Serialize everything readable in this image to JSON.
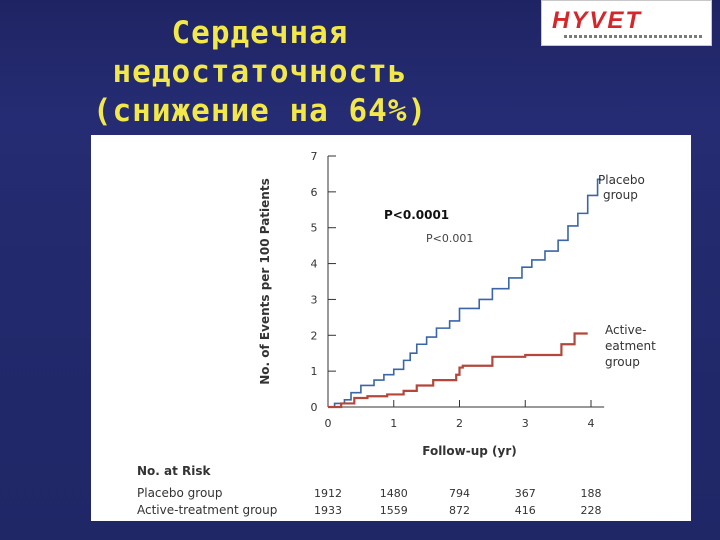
{
  "slide": {
    "title": "Сердечная\nнедостаточность\n(снижение на 64%)",
    "logo_text": "HYVET"
  },
  "chart_data": {
    "type": "line",
    "xlabel": "Follow-up (yr)",
    "ylabel": "No. of Events per 100 Patients",
    "xlim": [
      0,
      4.2
    ],
    "ylim": [
      0,
      7
    ],
    "xticks": [
      "0",
      "1",
      "2",
      "3",
      "4"
    ],
    "yticks": [
      "0",
      "1",
      "2",
      "3",
      "4",
      "5",
      "6",
      "7"
    ],
    "pvalue_overlay": "P<0.0001",
    "pvalue_chart": "P<0.001",
    "series": [
      {
        "name": "Placebo group",
        "label_lines": [
          "Placebo",
          "group"
        ],
        "color": "#3a66a8",
        "points": [
          [
            0,
            0
          ],
          [
            0.1,
            0.1
          ],
          [
            0.25,
            0.2
          ],
          [
            0.35,
            0.4
          ],
          [
            0.5,
            0.6
          ],
          [
            0.7,
            0.75
          ],
          [
            0.85,
            0.9
          ],
          [
            1.0,
            1.05
          ],
          [
            1.15,
            1.3
          ],
          [
            1.25,
            1.5
          ],
          [
            1.35,
            1.75
          ],
          [
            1.5,
            1.95
          ],
          [
            1.65,
            2.2
          ],
          [
            1.85,
            2.4
          ],
          [
            2.0,
            2.75
          ],
          [
            2.3,
            3.0
          ],
          [
            2.5,
            3.3
          ],
          [
            2.75,
            3.6
          ],
          [
            2.95,
            3.9
          ],
          [
            3.1,
            4.1
          ],
          [
            3.3,
            4.35
          ],
          [
            3.5,
            4.65
          ],
          [
            3.65,
            5.05
          ],
          [
            3.8,
            5.4
          ],
          [
            3.95,
            5.9
          ],
          [
            4.1,
            6.35
          ],
          [
            4.15,
            6.35
          ]
        ]
      },
      {
        "name": "Active-treatment group",
        "label_lines": [
          "Active-",
          "eatment",
          "group"
        ],
        "color": "#b3473b",
        "points": [
          [
            0,
            0
          ],
          [
            0.2,
            0.1
          ],
          [
            0.4,
            0.25
          ],
          [
            0.6,
            0.3
          ],
          [
            0.9,
            0.35
          ],
          [
            1.15,
            0.45
          ],
          [
            1.35,
            0.6
          ],
          [
            1.6,
            0.75
          ],
          [
            1.95,
            0.9
          ],
          [
            2.0,
            1.1
          ],
          [
            2.05,
            1.15
          ],
          [
            2.5,
            1.4
          ],
          [
            3.0,
            1.45
          ],
          [
            3.55,
            1.75
          ],
          [
            3.75,
            2.05
          ],
          [
            3.95,
            2.05
          ]
        ]
      }
    ],
    "at_risk": {
      "header": "No. at Risk",
      "rows": [
        {
          "label": "Placebo group",
          "values": [
            "1912",
            "1480",
            "794",
            "367",
            "188"
          ]
        },
        {
          "label": "Active-treatment group",
          "values": [
            "1933",
            "1559",
            "872",
            "416",
            "228"
          ]
        }
      ]
    }
  }
}
